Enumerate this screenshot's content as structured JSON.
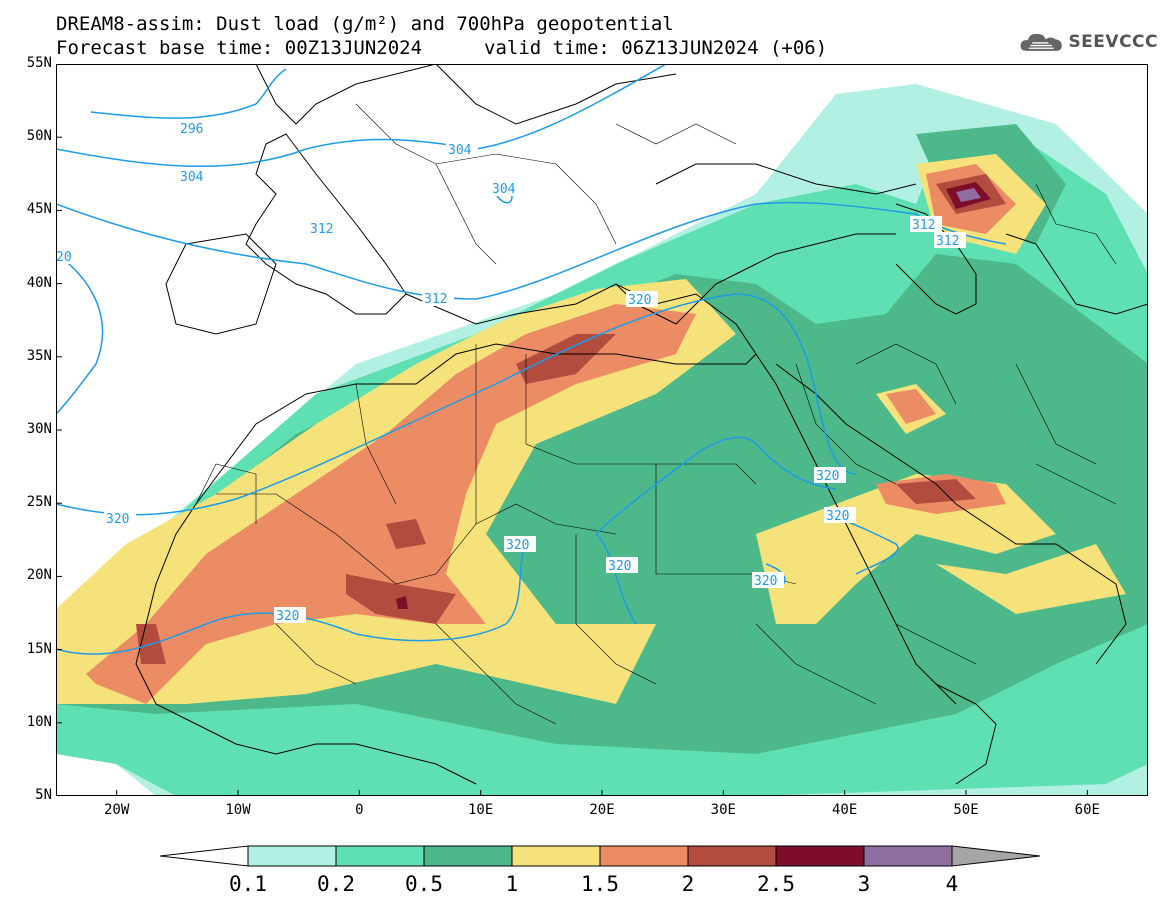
{
  "header": {
    "line1": "DREAM8-assim: Dust load (g/m²) and 700hPa geopotential",
    "line2": "Forecast base time: 00Z13JUN2024",
    "valid": "valid time: 06Z13JUN2024 (+06)"
  },
  "logo": {
    "text": "SEEVCCC",
    "icon": "cloud-icon"
  },
  "map": {
    "lon_range": [
      -25,
      65
    ],
    "lat_range": [
      5,
      55
    ],
    "lon_ticks": [
      "20W",
      "10W",
      "0",
      "10E",
      "20E",
      "30E",
      "40E",
      "50E",
      "60E"
    ],
    "lat_ticks": [
      "55N",
      "50N",
      "45N",
      "40N",
      "35N",
      "30N",
      "25N",
      "20N",
      "15N",
      "10N",
      "5N"
    ],
    "contour_labels": [
      "296",
      "304",
      "304",
      "304",
      "312",
      "312",
      "312",
      "312",
      "320",
      "320",
      "320",
      "320",
      "320",
      "320",
      "320",
      "320",
      "20"
    ],
    "colors": {
      "contour": "#1e9be6",
      "coast": "#000000"
    }
  },
  "colorbar": {
    "levels": [
      "0.1",
      "0.2",
      "0.5",
      "1",
      "1.5",
      "2",
      "2.5",
      "3",
      "4"
    ],
    "colors": [
      "#b3f0e4",
      "#5fe0b2",
      "#4db88a",
      "#f5e27a",
      "#ec8c64",
      "#b14c3e",
      "#7e0d2a",
      "#8e6ea0"
    ],
    "end_left": "#ffffff",
    "end_right": "#a6a6a6"
  }
}
